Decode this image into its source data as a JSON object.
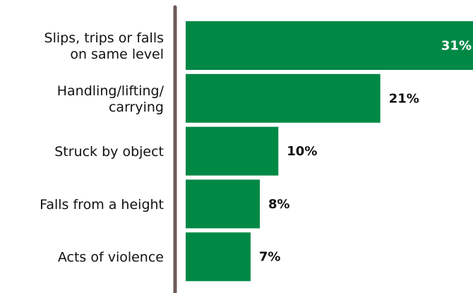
{
  "chart_data": {
    "type": "bar",
    "orientation": "horizontal",
    "title": "",
    "xlabel": "",
    "ylabel": "",
    "categories": [
      [
        "Slips, trips or falls",
        "on same level"
      ],
      [
        "Handling/lifting/",
        "carrying"
      ],
      [
        "Struck by object"
      ],
      [
        "Falls from a height"
      ],
      [
        "Acts of violence"
      ]
    ],
    "values": [
      31,
      21,
      10,
      8,
      7
    ],
    "value_labels": [
      "31%",
      "21%",
      "10%",
      "8%",
      "7%"
    ],
    "unit": "%",
    "xlim": [
      0,
      31
    ],
    "grid": false,
    "legend": "none"
  },
  "colors": {
    "bar": "#008845",
    "axis": "#6d5a56",
    "label_inside": "#ffffff",
    "label_outside": "#111111",
    "text": "#111111"
  }
}
